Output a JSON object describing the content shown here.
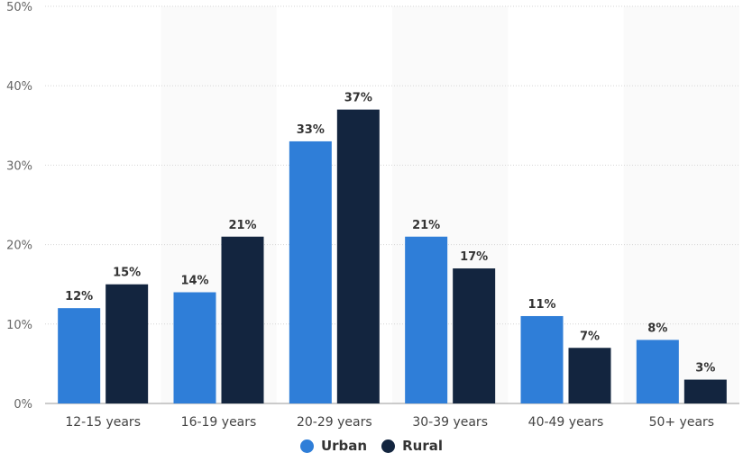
{
  "chart_data": {
    "type": "bar",
    "categories": [
      "12-15 years",
      "16-19 years",
      "20-29 years",
      "30-39 years",
      "40-49 years",
      "50+ years"
    ],
    "series": [
      {
        "name": "Urban",
        "values": [
          12,
          14,
          33,
          21,
          11,
          8
        ],
        "color": "#2f7ed8"
      },
      {
        "name": "Rural",
        "values": [
          15,
          21,
          37,
          17,
          7,
          3
        ],
        "color": "#13253f"
      }
    ],
    "value_suffix": "%",
    "ylim": [
      0,
      50
    ],
    "yticks": [
      0,
      10,
      20,
      30,
      40,
      50
    ],
    "ytick_labels": [
      "0%",
      "10%",
      "20%",
      "30%",
      "40%",
      "50%"
    ],
    "grid": true,
    "legend_position": "bottom-center",
    "xlabel": "",
    "ylabel": "",
    "title": ""
  }
}
